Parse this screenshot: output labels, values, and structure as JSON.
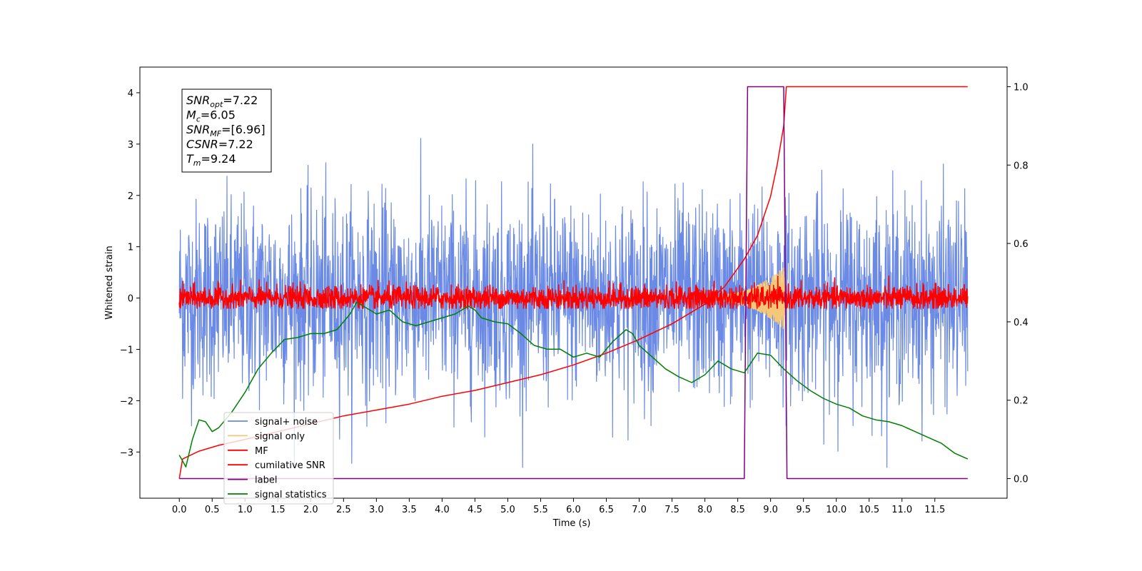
{
  "chart_data": {
    "type": "line",
    "xlabel": "Time (s)",
    "ylabel": "Whitened strain",
    "xlim": [
      -0.6,
      12.6
    ],
    "ylim": [
      -3.9,
      4.5
    ],
    "y2lim": [
      -0.05,
      1.05
    ],
    "x_ticks": [
      "0.0",
      "0.5",
      "1.0",
      "1.5",
      "2.0",
      "2.5",
      "3.0",
      "3.5",
      "4.0",
      "4.5",
      "5.0",
      "5.5",
      "6.0",
      "6.5",
      "7.0",
      "7.5",
      "8.0",
      "8.5",
      "9.0",
      "9.5",
      "10.0",
      "10.5",
      "11.0",
      "11.5"
    ],
    "y_ticks": [
      "−3",
      "−2",
      "−1",
      "0",
      "1",
      "2",
      "3",
      "4"
    ],
    "y2_ticks": [
      "0.0",
      "0.2",
      "0.4",
      "0.6",
      "0.8",
      "1.0"
    ],
    "annotation": {
      "lines": [
        {
          "base": "SNR",
          "sub": "opt",
          "value": "=7.22"
        },
        {
          "base": "M",
          "sub": "c",
          "value": "=6.05"
        },
        {
          "base": "SNR",
          "sub": "MF",
          "value": "=[6.96]"
        },
        {
          "base": "CSNR",
          "sub": "",
          "value": "=7.22"
        },
        {
          "base": "T",
          "sub": "m",
          "value": "=9.24"
        }
      ]
    },
    "legend": {
      "placement": "lower-left",
      "entries": [
        "signal+ noise",
        "signal only",
        "MF",
        "cumilative SNR",
        "label",
        "signal statistics"
      ]
    },
    "series": [
      {
        "name": "signal+ noise",
        "color": "#6b8ae5",
        "axis": "left",
        "kind": "noise",
        "x_range": [
          0.0,
          12.0
        ],
        "mean": 0.0,
        "std": 0.95,
        "noise_cap": [
          -3.3,
          4.2
        ]
      },
      {
        "name": "signal only",
        "color": "#f5c778",
        "axis": "left",
        "kind": "chirp",
        "x_range": [
          8.0,
          9.24
        ],
        "amplitude_peak": 0.65,
        "amplitude_start": 0.05
      },
      {
        "name": "MF",
        "color": "#ff0000",
        "axis": "left",
        "kind": "noise",
        "x_range": [
          0.0,
          12.0
        ],
        "mean": 0.0,
        "std": 0.12,
        "noise_cap": [
          -0.2,
          0.75
        ]
      },
      {
        "name": "cumilative SNR",
        "color": "#ff0000",
        "axis": "right",
        "kind": "points",
        "x": [
          0.0,
          0.05,
          0.3,
          0.6,
          1.0,
          1.5,
          2.0,
          2.5,
          3.0,
          3.5,
          4.0,
          4.5,
          5.0,
          5.5,
          6.0,
          6.5,
          7.0,
          7.5,
          8.0,
          8.3,
          8.6,
          8.8,
          9.0,
          9.1,
          9.2,
          9.24,
          10.0,
          11.0,
          12.0
        ],
        "y": [
          0.0,
          0.05,
          0.07,
          0.085,
          0.1,
          0.12,
          0.14,
          0.16,
          0.175,
          0.19,
          0.21,
          0.225,
          0.245,
          0.265,
          0.29,
          0.32,
          0.355,
          0.395,
          0.445,
          0.49,
          0.56,
          0.62,
          0.72,
          0.8,
          0.9,
          1.0,
          1.0,
          1.0,
          1.0
        ]
      },
      {
        "name": "label",
        "color": "#800080",
        "axis": "right",
        "kind": "points",
        "x": [
          0.0,
          8.6,
          8.65,
          9.2,
          9.25,
          12.0
        ],
        "y": [
          0.0,
          0.0,
          1.0,
          1.0,
          0.0,
          0.0
        ]
      },
      {
        "name": "signal statistics",
        "color": "#008000",
        "axis": "right",
        "kind": "points",
        "x": [
          0.0,
          0.1,
          0.2,
          0.3,
          0.4,
          0.5,
          0.6,
          0.8,
          1.0,
          1.2,
          1.4,
          1.6,
          1.8,
          2.0,
          2.2,
          2.4,
          2.6,
          2.7,
          2.8,
          3.0,
          3.2,
          3.4,
          3.6,
          3.8,
          4.0,
          4.2,
          4.4,
          4.5,
          4.6,
          4.8,
          5.0,
          5.2,
          5.4,
          5.6,
          5.8,
          6.0,
          6.2,
          6.4,
          6.6,
          6.8,
          6.9,
          7.0,
          7.2,
          7.4,
          7.6,
          7.8,
          8.0,
          8.2,
          8.4,
          8.6,
          8.8,
          9.0,
          9.2,
          9.4,
          9.6,
          9.8,
          10.0,
          10.2,
          10.4,
          10.6,
          10.8,
          11.0,
          11.2,
          11.4,
          11.6,
          11.8,
          12.0
        ],
        "y": [
          0.06,
          0.03,
          0.1,
          0.15,
          0.145,
          0.12,
          0.13,
          0.17,
          0.22,
          0.28,
          0.32,
          0.355,
          0.36,
          0.37,
          0.37,
          0.38,
          0.42,
          0.45,
          0.44,
          0.42,
          0.43,
          0.4,
          0.39,
          0.4,
          0.41,
          0.42,
          0.44,
          0.43,
          0.41,
          0.4,
          0.395,
          0.37,
          0.34,
          0.33,
          0.33,
          0.31,
          0.32,
          0.31,
          0.35,
          0.38,
          0.37,
          0.34,
          0.31,
          0.28,
          0.26,
          0.245,
          0.265,
          0.3,
          0.28,
          0.27,
          0.32,
          0.315,
          0.28,
          0.25,
          0.225,
          0.205,
          0.19,
          0.18,
          0.16,
          0.15,
          0.145,
          0.135,
          0.12,
          0.105,
          0.09,
          0.065,
          0.05
        ]
      }
    ]
  }
}
